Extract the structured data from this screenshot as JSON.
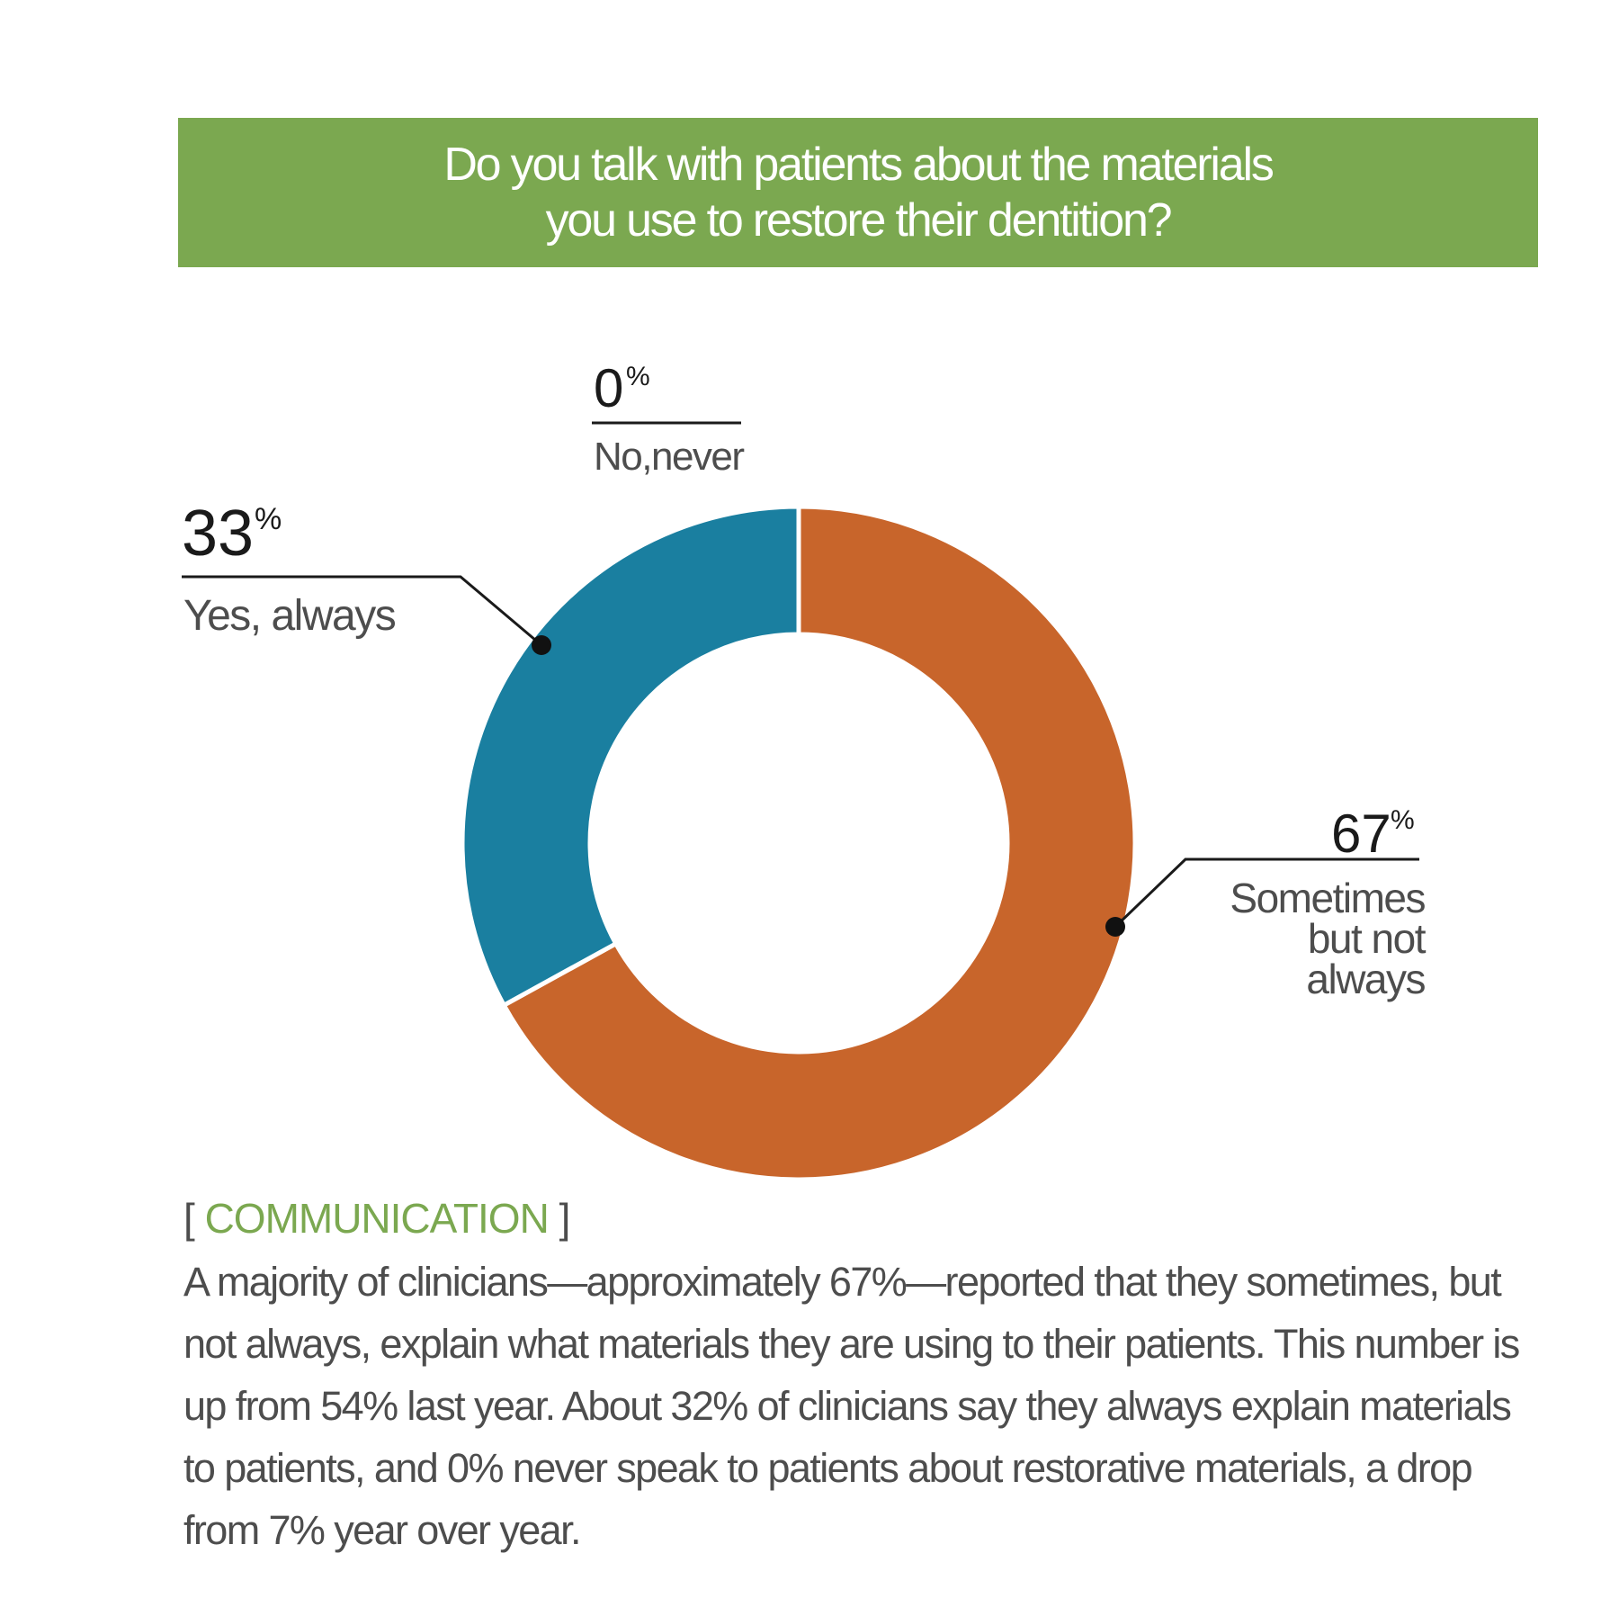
{
  "header": {
    "question_line1": "Do you talk with patients about the materials",
    "question_line2": "you use to restore their dentition?"
  },
  "colors": {
    "banner": "#7ba850",
    "yes_always": "#1a7fa0",
    "sometimes": "#c8652b",
    "no_never": "#c8652b",
    "tag_text": "#7ba850"
  },
  "chart_data": {
    "type": "pie",
    "variant": "donut",
    "title": "Do you talk with patients about the materials you use to restore their dentition?",
    "slices": [
      {
        "key": "no",
        "name": "No,never",
        "value": 0,
        "label_num": "0",
        "label_pct": "%",
        "color": "#c8652b"
      },
      {
        "key": "sometimes",
        "name": "Sometimes but not always",
        "label_lines": [
          "Sometimes",
          "but not",
          "always"
        ],
        "value": 67,
        "label_num": "67",
        "label_pct": "%",
        "color": "#c8652b"
      },
      {
        "key": "yes",
        "name": "Yes, always",
        "value": 33,
        "label_num": "33",
        "label_pct": "%",
        "color": "#1a7fa0"
      }
    ],
    "start_angle": "12 o'clock",
    "direction": "clockwise"
  },
  "section": {
    "bracket_open": "[",
    "tag": "COMMUNICATION",
    "bracket_close": "]"
  },
  "body": {
    "paragraph": "A majority of clinicians—approximately 67%—reported that they sometimes, but not always, explain what materials they are using to their patients. This number is up from 54% last year. About 32% of clinicians say they always explain materials to patients, and 0% never speak to patients about restorative materials, a drop from 7% year over year."
  }
}
